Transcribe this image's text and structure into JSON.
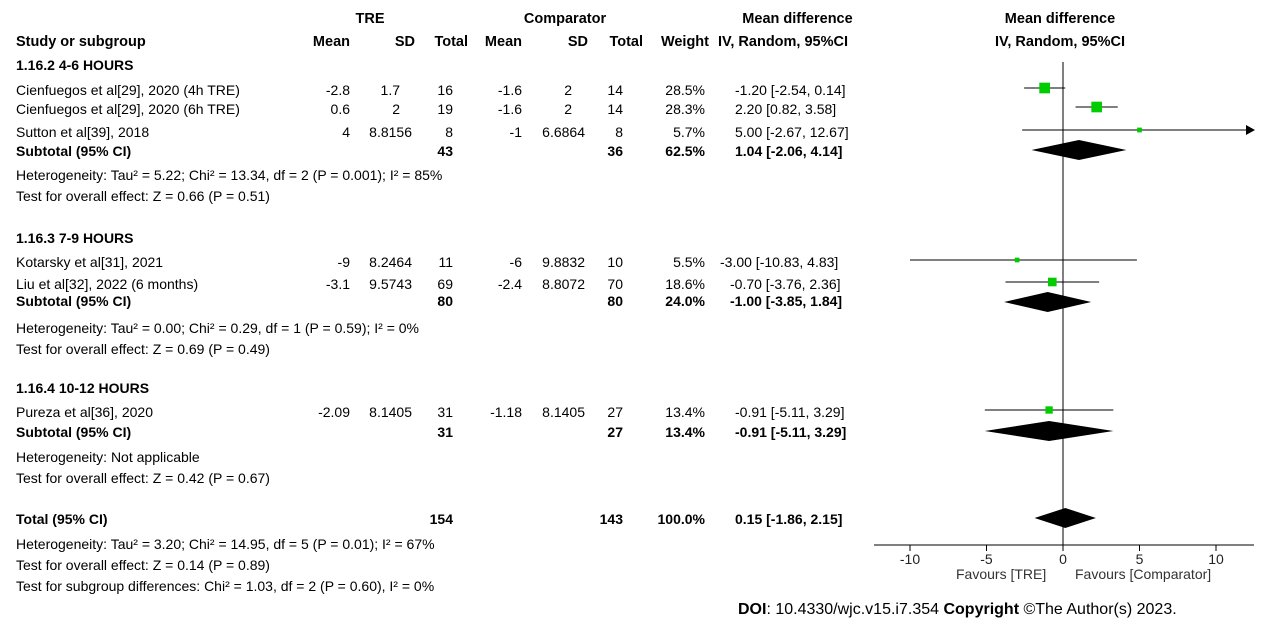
{
  "header": {
    "group1": "TRE",
    "group2": "Comparator",
    "col_study": "Study or subgroup",
    "col_mean1": "Mean",
    "col_sd1": "SD",
    "col_total1": "Total",
    "col_mean2": "Mean",
    "col_sd2": "SD",
    "col_total2": "Total",
    "col_weight": "Weight",
    "md_title": "Mean difference",
    "md_sub": "IV, Random, 95%CI",
    "plot_title": "Mean difference",
    "plot_sub": "IV, Random, 95%CI"
  },
  "subgroups": [
    {
      "title": "1.16.2 4-6 HOURS",
      "studies": [
        {
          "name": "Cienfuegos et al[29], 2020 (4h TRE)",
          "mean1": "-2.8",
          "sd1": "1.7",
          "n1": "16",
          "mean2": "-1.6",
          "sd2": "2",
          "n2": "14",
          "weight": "28.5%",
          "ci_text": "-1.20 [-2.54, 0.14]"
        },
        {
          "name": "Cienfuegos et al[29], 2020 (6h TRE)",
          "mean1": "0.6",
          "sd1": "2",
          "n1": "19",
          "mean2": "-1.6",
          "sd2": "2",
          "n2": "14",
          "weight": "28.3%",
          "ci_text": "2.20 [0.82, 3.58]"
        },
        {
          "name": "Sutton et al[39], 2018",
          "mean1": "4",
          "sd1": "8.8156",
          "n1": "8",
          "mean2": "-1",
          "sd2": "6.6864",
          "n2": "8",
          "weight": "5.7%",
          "ci_text": "5.00 [-2.67, 12.67]"
        }
      ],
      "subtotal": {
        "label": "Subtotal (95% CI)",
        "n1": "43",
        "n2": "36",
        "weight": "62.5%",
        "ci_text": "1.04 [-2.06, 4.14]"
      },
      "het_text": "Heterogeneity: Tau² = 5.22; Chi² = 13.34, df = 2 (P = 0.001); I² = 85%",
      "effect_text": "Test for overall effect: Z = 0.66 (P = 0.51)"
    },
    {
      "title": "1.16.3 7-9 HOURS",
      "studies": [
        {
          "name": "Kotarsky et al[31], 2021",
          "mean1": "-9",
          "sd1": "8.2464",
          "n1": "11",
          "mean2": "-6",
          "sd2": "9.8832",
          "n2": "10",
          "weight": "5.5%",
          "ci_text": "-3.00 [-10.83, 4.83]"
        },
        {
          "name": "Liu et al[32], 2022 (6 months)",
          "mean1": "-3.1",
          "sd1": "9.5743",
          "n1": "69",
          "mean2": "-2.4",
          "sd2": "8.8072",
          "n2": "70",
          "weight": "18.6%",
          "ci_text": "-0.70 [-3.76, 2.36]"
        }
      ],
      "subtotal": {
        "label": "Subtotal (95% CI)",
        "n1": "80",
        "n2": "80",
        "weight": "24.0%",
        "ci_text": "-1.00 [-3.85, 1.84]"
      },
      "het_text": "Heterogeneity: Tau² = 0.00; Chi² = 0.29, df = 1 (P = 0.59); I² = 0%",
      "effect_text": "Test for overall effect: Z = 0.69 (P = 0.49)"
    },
    {
      "title": "1.16.4 10-12 HOURS",
      "studies": [
        {
          "name": "Pureza et al[36], 2020",
          "mean1": "-2.09",
          "sd1": "8.1405",
          "n1": "31",
          "mean2": "-1.18",
          "sd2": "8.1405",
          "n2": "27",
          "weight": "13.4%",
          "ci_text": "-0.91 [-5.11, 3.29]"
        }
      ],
      "subtotal": {
        "label": "Subtotal (95% CI)",
        "n1": "31",
        "n2": "27",
        "weight": "13.4%",
        "ci_text": "-0.91 [-5.11, 3.29]"
      },
      "het_text": "Heterogeneity: Not applicable",
      "effect_text": "Test for overall effect: Z = 0.42 (P = 0.67)"
    }
  ],
  "total": {
    "label": "Total (95% CI)",
    "n1": "154",
    "n2": "143",
    "weight": "100.0%",
    "ci_text": "0.15 [-1.86, 2.15]"
  },
  "total_het_text": "Heterogeneity: Tau² = 3.20; Chi² = 14.95, df = 5 (P = 0.01); I² = 67%",
  "total_effect_text": "Test for overall effect: Z = 0.14 (P = 0.89)",
  "subgroup_diff_text": "Test for subgroup differences: Chi² = 1.03, df = 2 (P = 0.60), I² = 0%",
  "axis": {
    "favours_left": "Favours [TRE]",
    "favours_right": "Favours [Comparator]"
  },
  "footer": {
    "doi_label": "DOI",
    "doi_value": ": 10.4330/wjc.v15.i7.354 ",
    "copyright_label": "Copyright",
    "copyright_value": " ©The Author(s) 2023."
  },
  "colors": {
    "square": "#00cc00",
    "diamond": "#000000",
    "line": "#000000"
  },
  "chart_data": {
    "type": "forest",
    "xlim": [
      -10,
      10
    ],
    "xticks": [
      -10,
      -5,
      0,
      5,
      10
    ],
    "studies": [
      {
        "name": "Cienfuegos et al[29], 2020 (4h TRE)",
        "md": -1.2,
        "lo": -2.54,
        "hi": 0.14,
        "weight": 28.5
      },
      {
        "name": "Cienfuegos et al[29], 2020 (6h TRE)",
        "md": 2.2,
        "lo": 0.82,
        "hi": 3.58,
        "weight": 28.3
      },
      {
        "name": "Sutton et al[39], 2018",
        "md": 5.0,
        "lo": -2.67,
        "hi": 12.67,
        "weight": 5.7
      },
      {
        "name": "Kotarsky et al[31], 2021",
        "md": -3.0,
        "lo": -10.83,
        "hi": 4.83,
        "weight": 5.5
      },
      {
        "name": "Liu et al[32], 2022 (6 months)",
        "md": -0.7,
        "lo": -3.76,
        "hi": 2.36,
        "weight": 18.6
      },
      {
        "name": "Pureza et al[36], 2020",
        "md": -0.91,
        "lo": -5.11,
        "hi": 3.29,
        "weight": 13.4
      }
    ],
    "diamonds": [
      {
        "label": "Subtotal 1.16.2",
        "md": 1.04,
        "lo": -2.06,
        "hi": 4.14
      },
      {
        "label": "Subtotal 1.16.3",
        "md": -1.0,
        "lo": -3.85,
        "hi": 1.84
      },
      {
        "label": "Subtotal 1.16.4",
        "md": -0.91,
        "lo": -5.11,
        "hi": 3.29
      },
      {
        "label": "Total",
        "md": 0.15,
        "lo": -1.86,
        "hi": 2.15
      }
    ]
  }
}
